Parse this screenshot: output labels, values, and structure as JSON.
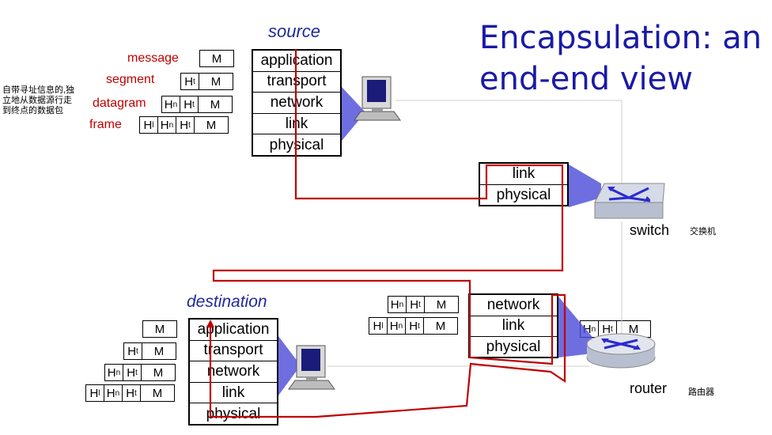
{
  "title": {
    "line1": "Encapsulation: an",
    "line2": "end-end view"
  },
  "source_label": "source",
  "destination_label": "destination",
  "note_cn": [
    "自带寻址信息的,独",
    "立地从数据源行走",
    "到终点的数据包"
  ],
  "unit_labels": {
    "message": "message",
    "segment": "segment",
    "datagram": "datagram",
    "frame": "frame"
  },
  "headers": {
    "M": "M",
    "H": "H",
    "t": "t",
    "n": "n",
    "l": "l"
  },
  "layers": {
    "application": "application",
    "transport": "transport",
    "network": "network",
    "link": "link",
    "physical": "physical"
  },
  "switch": {
    "label": "switch",
    "label_cn": "交换机"
  },
  "router": {
    "label": "router",
    "label_cn": "路由器"
  },
  "colors": {
    "title": "#1a1aa6",
    "red_path": "#c00000",
    "red_labels": "#c00000",
    "device_blue": "#3a3ad0"
  }
}
